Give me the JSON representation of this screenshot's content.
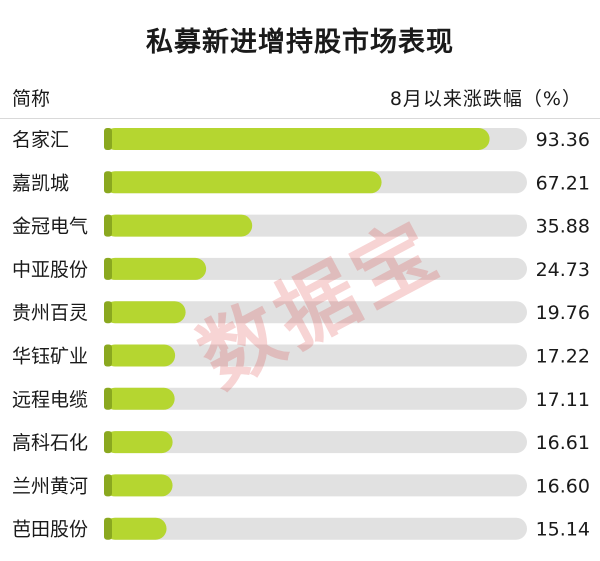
{
  "chart_data": {
    "type": "bar",
    "title": "私募新进增持股市场表现",
    "category_header": "简称",
    "value_header": "8月以来涨跌幅（%）",
    "categories": [
      "名家汇",
      "嘉凯城",
      "金冠电气",
      "中亚股份",
      "贵州百灵",
      "华钰矿业",
      "远程电缆",
      "高科石化",
      "兰州黄河",
      "芭田股份"
    ],
    "values": [
      93.36,
      67.21,
      35.88,
      24.73,
      19.76,
      17.22,
      17.11,
      16.61,
      16.6,
      15.14
    ],
    "value_labels": [
      "93.36",
      "67.21",
      "35.88",
      "24.73",
      "19.76",
      "17.22",
      "17.11",
      "16.61",
      "16.60",
      "15.14"
    ],
    "xlim": [
      0,
      100
    ],
    "orientation": "horizontal"
  },
  "watermark": "数据宝",
  "colors": {
    "bar": "#b5d630",
    "bar_cap": "#8aa81f",
    "track": "#e1e1e1"
  }
}
